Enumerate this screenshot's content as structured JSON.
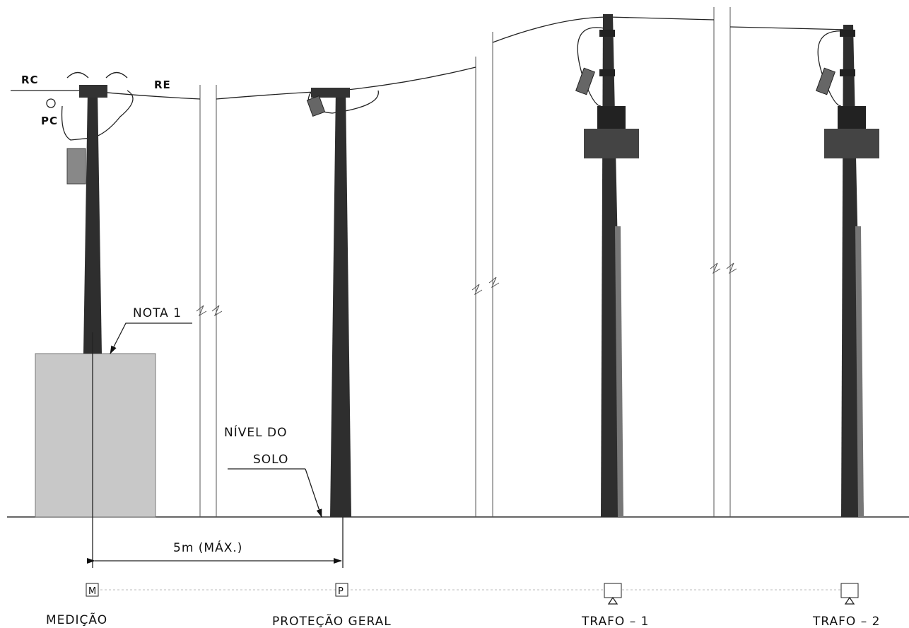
{
  "labels": {
    "rc": "RC",
    "re": "RE",
    "pc": "PC"
  },
  "notes": {
    "nota": "NOTA 1",
    "ground_level": [
      "NÍVEL DO",
      "SOLO"
    ]
  },
  "dimension": "5m (MÁX.)",
  "units": [
    {
      "symbol": "M",
      "label": "MEDIÇÃO"
    },
    {
      "symbol": "P",
      "label": "PROTEÇÃO GERAL"
    },
    {
      "label": "TRAFO – 1"
    },
    {
      "label": "TRAFO – 2"
    }
  ]
}
